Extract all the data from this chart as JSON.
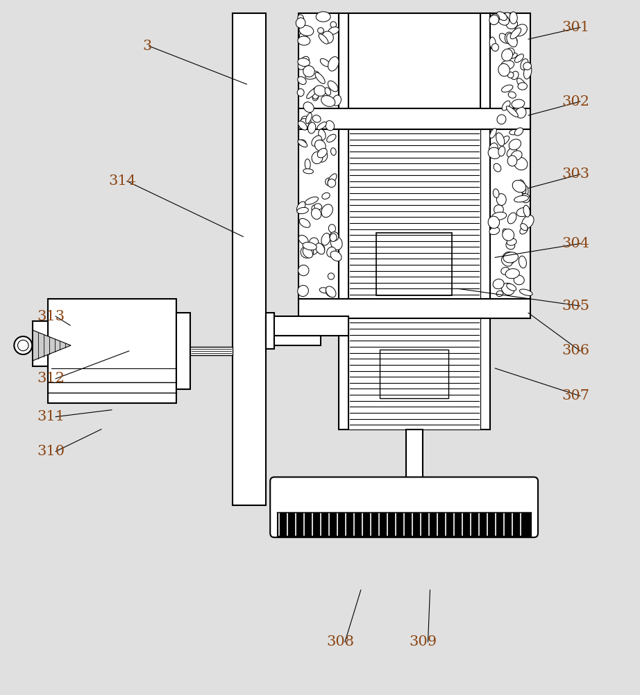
{
  "bg_color": "#e0e0e0",
  "line_color": "#000000",
  "label_color": "#8B4513",
  "fig_width": 9.22,
  "fig_height": 10.0
}
